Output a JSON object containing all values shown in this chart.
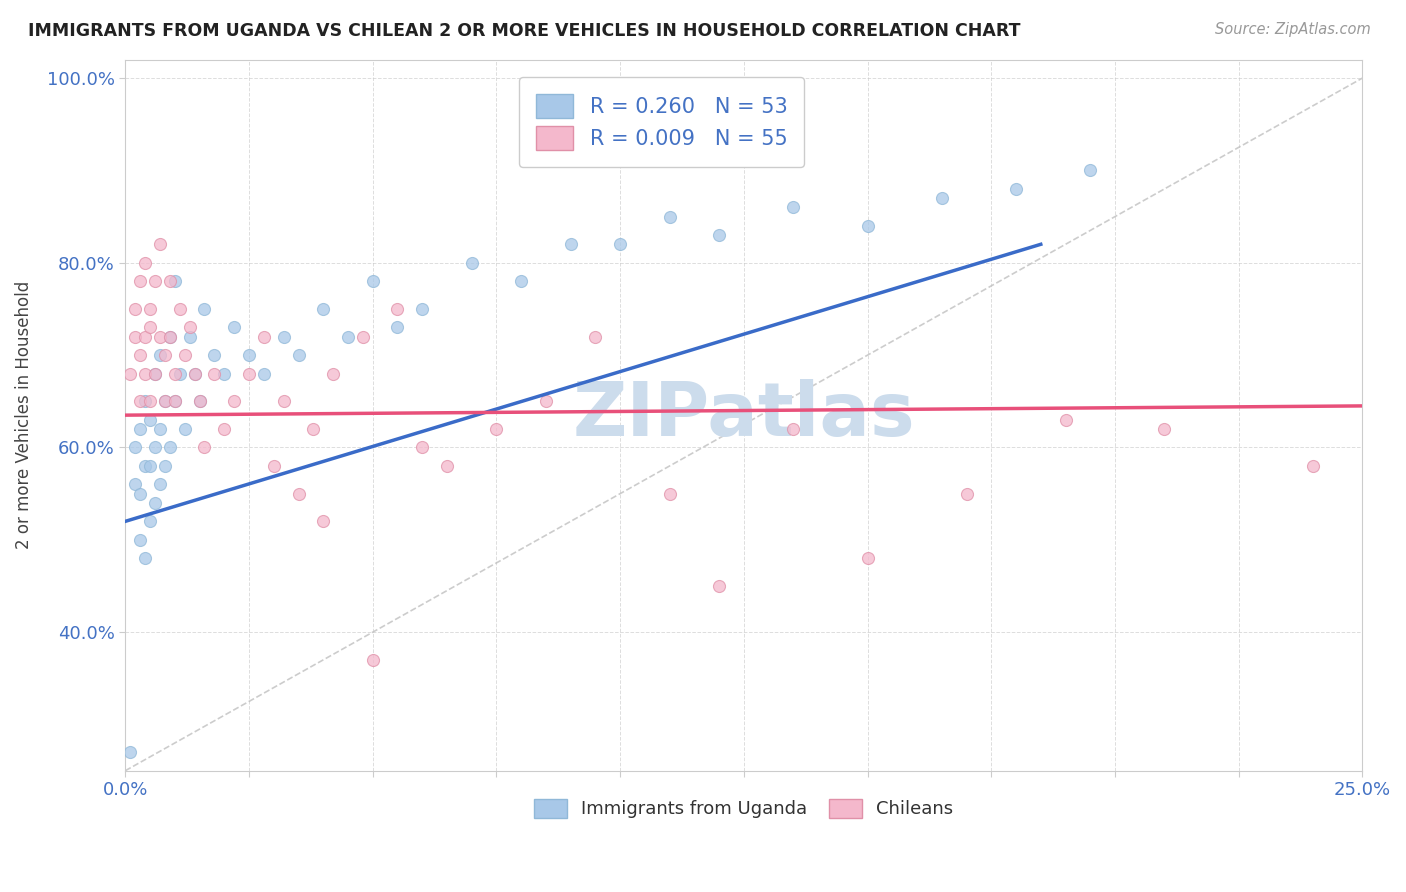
{
  "title": "IMMIGRANTS FROM UGANDA VS CHILEAN 2 OR MORE VEHICLES IN HOUSEHOLD CORRELATION CHART",
  "source": "Source: ZipAtlas.com",
  "ylabel": "2 or more Vehicles in Household",
  "xlim": [
    0.0,
    0.25
  ],
  "ylim": [
    0.25,
    1.02
  ],
  "xticks": [
    0.0,
    0.025,
    0.05,
    0.075,
    0.1,
    0.125,
    0.15,
    0.175,
    0.2,
    0.225,
    0.25
  ],
  "xticklabels": [
    "0.0%",
    "",
    "",
    "",
    "",
    "",
    "",
    "",
    "",
    "",
    "25.0%"
  ],
  "yticks": [
    0.4,
    0.6,
    0.8,
    1.0
  ],
  "yticklabels": [
    "40.0%",
    "60.0%",
    "80.0%",
    "100.0%"
  ],
  "uganda_R": 0.26,
  "uganda_N": 53,
  "chilean_R": 0.009,
  "chilean_N": 55,
  "uganda_color": "#a8c8e8",
  "chilean_color": "#f4b8cc",
  "uganda_trend_color": "#3a6bc8",
  "chilean_trend_color": "#e8507a",
  "ref_line_color": "#c0c0c0",
  "background_color": "#ffffff",
  "watermark": "ZIPatlas",
  "watermark_color": "#ccdcec",
  "legend_color": "#4472c4",
  "uganda_x": [
    0.001,
    0.002,
    0.002,
    0.003,
    0.003,
    0.003,
    0.004,
    0.004,
    0.004,
    0.005,
    0.005,
    0.005,
    0.006,
    0.006,
    0.006,
    0.007,
    0.007,
    0.007,
    0.008,
    0.008,
    0.009,
    0.009,
    0.01,
    0.01,
    0.011,
    0.012,
    0.013,
    0.014,
    0.015,
    0.016,
    0.018,
    0.02,
    0.022,
    0.025,
    0.028,
    0.032,
    0.035,
    0.04,
    0.045,
    0.05,
    0.055,
    0.06,
    0.07,
    0.08,
    0.09,
    0.1,
    0.11,
    0.12,
    0.135,
    0.15,
    0.165,
    0.18,
    0.195
  ],
  "uganda_y": [
    0.27,
    0.56,
    0.6,
    0.5,
    0.55,
    0.62,
    0.48,
    0.58,
    0.65,
    0.52,
    0.58,
    0.63,
    0.54,
    0.6,
    0.68,
    0.56,
    0.62,
    0.7,
    0.58,
    0.65,
    0.6,
    0.72,
    0.65,
    0.78,
    0.68,
    0.62,
    0.72,
    0.68,
    0.65,
    0.75,
    0.7,
    0.68,
    0.73,
    0.7,
    0.68,
    0.72,
    0.7,
    0.75,
    0.72,
    0.78,
    0.73,
    0.75,
    0.8,
    0.78,
    0.82,
    0.82,
    0.85,
    0.83,
    0.86,
    0.84,
    0.87,
    0.88,
    0.9
  ],
  "chilean_x": [
    0.001,
    0.002,
    0.002,
    0.003,
    0.003,
    0.003,
    0.004,
    0.004,
    0.004,
    0.005,
    0.005,
    0.005,
    0.006,
    0.006,
    0.007,
    0.007,
    0.008,
    0.008,
    0.009,
    0.009,
    0.01,
    0.01,
    0.011,
    0.012,
    0.013,
    0.014,
    0.015,
    0.016,
    0.018,
    0.02,
    0.022,
    0.025,
    0.028,
    0.032,
    0.038,
    0.042,
    0.048,
    0.055,
    0.065,
    0.075,
    0.085,
    0.095,
    0.11,
    0.12,
    0.135,
    0.15,
    0.17,
    0.19,
    0.21,
    0.24,
    0.03,
    0.035,
    0.04,
    0.05,
    0.06
  ],
  "chilean_y": [
    0.68,
    0.72,
    0.75,
    0.65,
    0.7,
    0.78,
    0.72,
    0.8,
    0.68,
    0.75,
    0.65,
    0.73,
    0.78,
    0.68,
    0.72,
    0.82,
    0.65,
    0.7,
    0.78,
    0.72,
    0.68,
    0.65,
    0.75,
    0.7,
    0.73,
    0.68,
    0.65,
    0.6,
    0.68,
    0.62,
    0.65,
    0.68,
    0.72,
    0.65,
    0.62,
    0.68,
    0.72,
    0.75,
    0.58,
    0.62,
    0.65,
    0.72,
    0.55,
    0.45,
    0.62,
    0.48,
    0.55,
    0.63,
    0.62,
    0.58,
    0.58,
    0.55,
    0.52,
    0.37,
    0.6
  ],
  "uganda_trend_x": [
    0.0,
    0.185
  ],
  "uganda_trend_y": [
    0.52,
    0.82
  ],
  "chilean_trend_x": [
    0.0,
    0.25
  ],
  "chilean_trend_y": [
    0.635,
    0.645
  ]
}
